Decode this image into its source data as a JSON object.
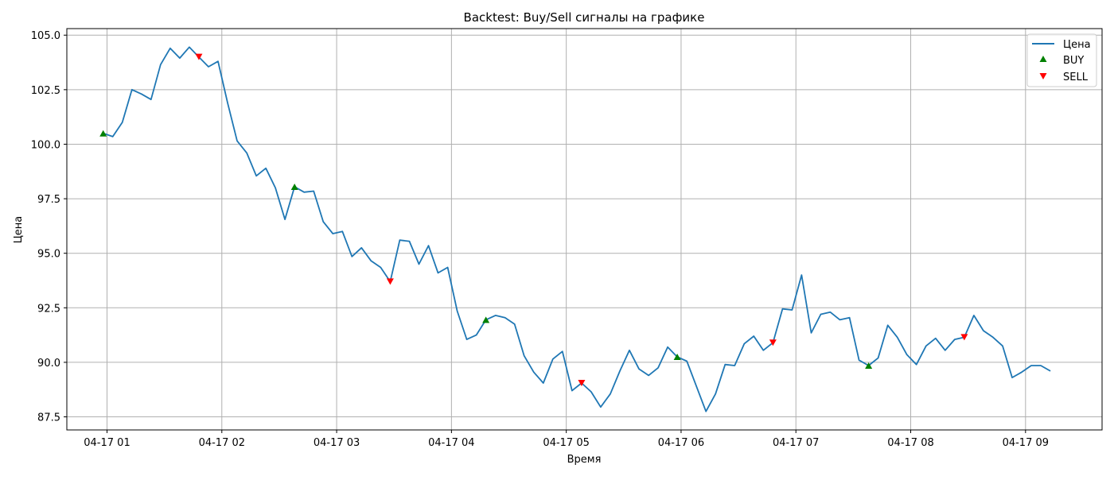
{
  "chart_data": {
    "type": "line",
    "title": "Backtest: Buy/Sell сигналы на графике",
    "xlabel": "Время",
    "ylabel": "Цена",
    "ylim": [
      86.9,
      105.3
    ],
    "yticks": [
      87.5,
      90.0,
      92.5,
      95.0,
      97.5,
      100.0,
      102.5,
      105.0
    ],
    "ytick_labels": [
      "87.5",
      "90.0",
      "92.5",
      "95.0",
      "97.5",
      "100.0",
      "102.5",
      "105.0"
    ],
    "xlim": [
      "04-17 00:39",
      "04-17 09:40"
    ],
    "xticks": [
      "04-17 01:00",
      "04-17 02:00",
      "04-17 03:00",
      "04-17 04:00",
      "04-17 05:00",
      "04-17 06:00",
      "04-17 07:00",
      "04-17 08:00",
      "04-17 09:00"
    ],
    "xtick_labels": [
      "04-17 01",
      "04-17 02",
      "04-17 03",
      "04-17 04",
      "04-17 05",
      "04-17 06",
      "04-17 07",
      "04-17 08",
      "04-17 09"
    ],
    "grid": true,
    "legend_position": "top-right",
    "colors": {
      "price": "#1f77b4",
      "buy": "#008000",
      "sell": "#ff0000",
      "grid": "#b0b0b0"
    },
    "series": [
      {
        "name": "Цена",
        "type": "line",
        "x": [
          "04-17 00:58",
          "04-17 01:03",
          "04-17 01:08",
          "04-17 01:13",
          "04-17 01:18",
          "04-17 01:23",
          "04-17 01:28",
          "04-17 01:33",
          "04-17 01:38",
          "04-17 01:43",
          "04-17 01:48",
          "04-17 01:53",
          "04-17 01:58",
          "04-17 02:03",
          "04-17 02:08",
          "04-17 02:13",
          "04-17 02:18",
          "04-17 02:23",
          "04-17 02:28",
          "04-17 02:33",
          "04-17 02:38",
          "04-17 02:43",
          "04-17 02:48",
          "04-17 02:53",
          "04-17 02:58",
          "04-17 03:03",
          "04-17 03:08",
          "04-17 03:13",
          "04-17 03:18",
          "04-17 03:23",
          "04-17 03:28",
          "04-17 03:33",
          "04-17 03:38",
          "04-17 03:43",
          "04-17 03:48",
          "04-17 03:53",
          "04-17 03:58",
          "04-17 04:03",
          "04-17 04:08",
          "04-17 04:13",
          "04-17 04:18",
          "04-17 04:23",
          "04-17 04:28",
          "04-17 04:33",
          "04-17 04:38",
          "04-17 04:43",
          "04-17 04:48",
          "04-17 04:53",
          "04-17 04:58",
          "04-17 05:03",
          "04-17 05:08",
          "04-17 05:13",
          "04-17 05:18",
          "04-17 05:23",
          "04-17 05:28",
          "04-17 05:33",
          "04-17 05:38",
          "04-17 05:43",
          "04-17 05:48",
          "04-17 05:53",
          "04-17 05:58",
          "04-17 06:03",
          "04-17 06:08",
          "04-17 06:13",
          "04-17 06:18",
          "04-17 06:23",
          "04-17 06:28",
          "04-17 06:33",
          "04-17 06:38",
          "04-17 06:43",
          "04-17 06:48",
          "04-17 06:53",
          "04-17 06:58",
          "04-17 07:03",
          "04-17 07:08",
          "04-17 07:13",
          "04-17 07:18",
          "04-17 07:23",
          "04-17 07:28",
          "04-17 07:33",
          "04-17 07:38",
          "04-17 07:43",
          "04-17 07:48",
          "04-17 07:53",
          "04-17 07:58",
          "04-17 08:03",
          "04-17 08:08",
          "04-17 08:13",
          "04-17 08:18",
          "04-17 08:23",
          "04-17 08:28",
          "04-17 08:33",
          "04-17 08:38",
          "04-17 08:43",
          "04-17 08:48",
          "04-17 08:53",
          "04-17 08:58",
          "04-17 09:03",
          "04-17 09:08",
          "04-17 09:13"
        ],
        "y": [
          100.5,
          100.35,
          101.0,
          102.5,
          102.3,
          102.05,
          103.65,
          104.4,
          103.95,
          104.45,
          104.0,
          103.55,
          103.8,
          101.9,
          100.15,
          99.6,
          98.55,
          98.9,
          98.0,
          96.55,
          98.05,
          97.8,
          97.85,
          96.45,
          95.9,
          96.0,
          94.85,
          95.25,
          94.65,
          94.35,
          93.7,
          95.6,
          95.55,
          94.5,
          95.35,
          94.1,
          94.35,
          92.35,
          91.05,
          91.25,
          91.95,
          92.15,
          92.05,
          91.75,
          90.3,
          89.55,
          89.05,
          90.15,
          90.5,
          88.7,
          89.05,
          88.65,
          87.95,
          88.55,
          89.6,
          90.55,
          89.7,
          89.4,
          89.75,
          90.7,
          90.25,
          90.05,
          88.9,
          87.75,
          88.55,
          89.9,
          89.85,
          90.85,
          91.2,
          90.55,
          90.9,
          92.45,
          92.4,
          94.0,
          91.35,
          92.2,
          92.3,
          91.95,
          92.05,
          90.1,
          89.85,
          90.2,
          91.7,
          91.15,
          90.35,
          89.9,
          90.75,
          91.1,
          90.55,
          91.05,
          91.15,
          92.15,
          91.45,
          91.15,
          90.75,
          89.3,
          89.55,
          89.85,
          89.85,
          89.6
        ]
      },
      {
        "name": "BUY",
        "type": "scatter",
        "marker": "triangle-up",
        "x": [
          "04-17 00:58",
          "04-17 02:38",
          "04-17 04:18",
          "04-17 05:58",
          "04-17 07:38"
        ],
        "y": [
          100.5,
          98.05,
          91.95,
          90.25,
          89.85
        ]
      },
      {
        "name": "SELL",
        "type": "scatter",
        "marker": "triangle-down",
        "x": [
          "04-17 01:48",
          "04-17 03:28",
          "04-17 05:08",
          "04-17 06:48",
          "04-17 08:28"
        ],
        "y": [
          104.0,
          93.7,
          89.05,
          90.9,
          91.15
        ]
      }
    ]
  }
}
